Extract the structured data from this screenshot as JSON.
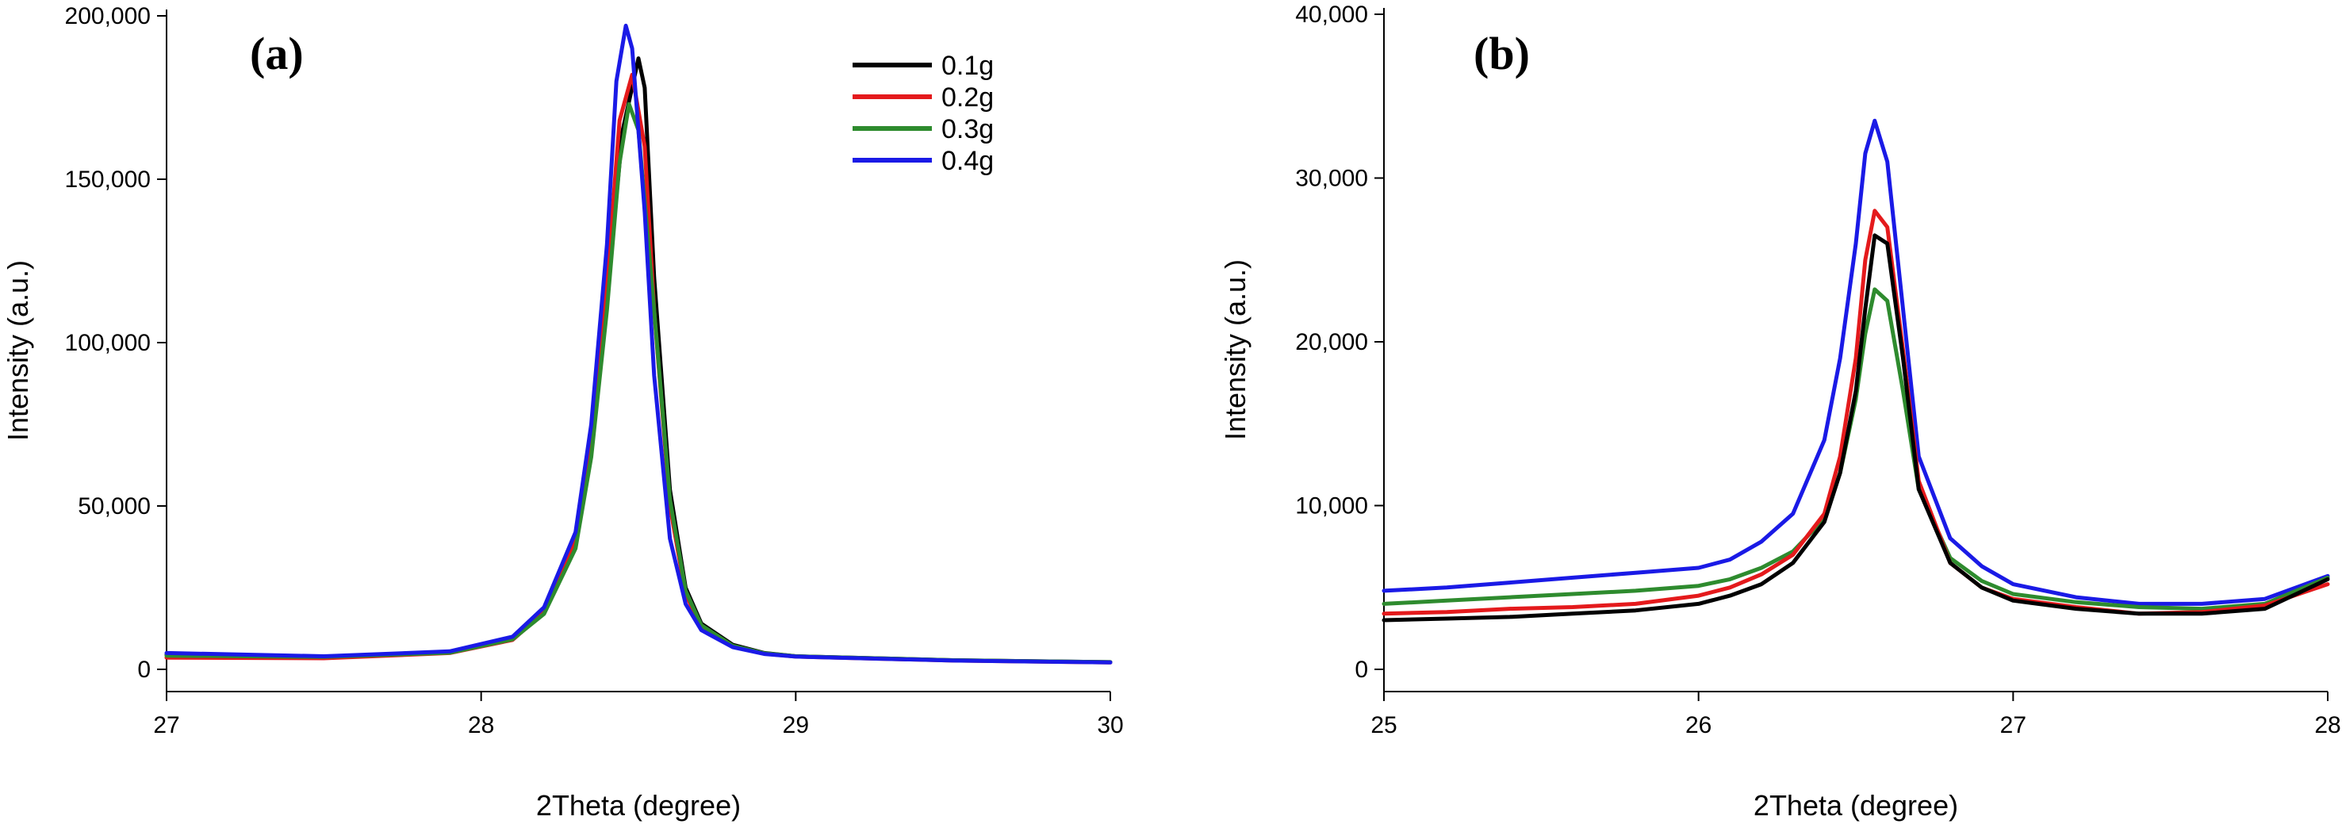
{
  "colors": {
    "0.1g": "#000000",
    "0.2g": "#e41a1c",
    "0.3g": "#2e8b2e",
    "0.4g": "#1a1ae6"
  },
  "chart_data": [
    {
      "type": "line",
      "panel_label": "(a)",
      "xlabel": "2Theta (degree)",
      "ylabel": "Intensity (a.u.)",
      "xlim": [
        27,
        30
      ],
      "ylim": [
        0,
        200000
      ],
      "x_ticks": [
        27,
        28,
        29,
        30
      ],
      "x_tick_labels": [
        "27",
        "28",
        "29",
        "30"
      ],
      "y_ticks": [
        0,
        50000,
        100000,
        150000,
        200000
      ],
      "y_tick_labels": [
        "0",
        "50,000",
        "100,000",
        "150,000",
        "200,000"
      ],
      "legend": {
        "placement": "top-right",
        "entries": [
          "0.1g",
          "0.2g",
          "0.3g",
          "0.4g"
        ]
      },
      "series": [
        {
          "name": "0.1g",
          "x": [
            27.0,
            27.5,
            27.9,
            28.1,
            28.2,
            28.3,
            28.35,
            28.4,
            28.45,
            28.5,
            28.52,
            28.55,
            28.6,
            28.65,
            28.7,
            28.8,
            28.9,
            29.0,
            29.5,
            30.0
          ],
          "y": [
            4500,
            3700,
            5200,
            9500,
            18000,
            40000,
            70000,
            115000,
            165000,
            187000,
            178000,
            120000,
            55000,
            25000,
            14000,
            7500,
            5000,
            4000,
            2800,
            2200
          ]
        },
        {
          "name": "0.2g",
          "x": [
            27.0,
            27.5,
            27.9,
            28.1,
            28.2,
            28.3,
            28.35,
            28.4,
            28.44,
            28.48,
            28.52,
            28.55,
            28.6,
            28.65,
            28.7,
            28.8,
            28.9,
            29.0,
            29.5,
            30.0
          ],
          "y": [
            3600,
            3400,
            5000,
            9000,
            17500,
            39000,
            68000,
            118000,
            168000,
            182000,
            160000,
            110000,
            50000,
            23000,
            13000,
            7000,
            4800,
            3900,
            2700,
            2100
          ]
        },
        {
          "name": "0.3g",
          "x": [
            27.0,
            27.5,
            27.9,
            28.1,
            28.2,
            28.3,
            28.35,
            28.4,
            28.44,
            28.47,
            28.5,
            28.55,
            28.6,
            28.65,
            28.7,
            28.8,
            28.9,
            29.0,
            29.5,
            30.0
          ],
          "y": [
            4200,
            3800,
            5100,
            9200,
            17000,
            37000,
            65000,
            110000,
            155000,
            173000,
            165000,
            110000,
            52000,
            24000,
            13500,
            7200,
            4900,
            4000,
            2800,
            2200
          ]
        },
        {
          "name": "0.4g",
          "x": [
            27.0,
            27.5,
            27.9,
            28.1,
            28.2,
            28.3,
            28.35,
            28.4,
            28.43,
            28.46,
            28.48,
            28.52,
            28.55,
            28.6,
            28.65,
            28.7,
            28.8,
            28.9,
            29.0,
            29.5,
            30.0
          ],
          "y": [
            5000,
            4000,
            5500,
            10000,
            19000,
            42000,
            75000,
            130000,
            180000,
            197000,
            190000,
            140000,
            90000,
            40000,
            20000,
            12000,
            6800,
            4700,
            3900,
            2700,
            2100
          ]
        }
      ]
    },
    {
      "type": "line",
      "panel_label": "(b)",
      "xlabel": "2Theta (degree)",
      "ylabel": "Intensity (a.u.)",
      "xlim": [
        25,
        28
      ],
      "ylim": [
        0,
        40000
      ],
      "x_ticks": [
        25,
        26,
        27,
        28
      ],
      "x_tick_labels": [
        "25",
        "26",
        "27",
        "28"
      ],
      "y_ticks": [
        0,
        10000,
        20000,
        30000,
        40000
      ],
      "y_tick_labels": [
        "0",
        "10,000",
        "20,000",
        "30,000",
        "40,000"
      ],
      "series": [
        {
          "name": "0.1g",
          "x": [
            25.0,
            25.2,
            25.4,
            25.6,
            25.8,
            26.0,
            26.1,
            26.2,
            26.3,
            26.4,
            26.45,
            26.5,
            26.53,
            26.56,
            26.6,
            26.65,
            26.7,
            26.8,
            26.9,
            27.0,
            27.2,
            27.4,
            27.6,
            27.8,
            28.0
          ],
          "y": [
            3000,
            3100,
            3200,
            3400,
            3600,
            4000,
            4500,
            5200,
            6500,
            9000,
            12000,
            17000,
            22000,
            26500,
            26000,
            19000,
            11000,
            6500,
            5000,
            4200,
            3700,
            3400,
            3400,
            3700,
            5500
          ]
        },
        {
          "name": "0.2g",
          "x": [
            25.0,
            25.2,
            25.4,
            25.6,
            25.8,
            26.0,
            26.1,
            26.2,
            26.3,
            26.4,
            26.45,
            26.5,
            26.53,
            26.56,
            26.6,
            26.65,
            26.7,
            26.8,
            26.9,
            27.0,
            27.2,
            27.4,
            27.6,
            27.8,
            28.0
          ],
          "y": [
            3400,
            3500,
            3700,
            3800,
            4000,
            4500,
            5000,
            5800,
            7000,
            9500,
            13000,
            19000,
            25000,
            28000,
            27000,
            19500,
            11500,
            6500,
            5000,
            4300,
            3800,
            3400,
            3500,
            3900,
            5200
          ]
        },
        {
          "name": "0.3g",
          "x": [
            25.0,
            25.2,
            25.4,
            25.6,
            25.8,
            26.0,
            26.1,
            26.2,
            26.3,
            26.4,
            26.45,
            26.5,
            26.53,
            26.56,
            26.6,
            26.65,
            26.7,
            26.8,
            26.9,
            27.0,
            27.2,
            27.4,
            27.6,
            27.8,
            28.0
          ],
          "y": [
            4000,
            4200,
            4400,
            4600,
            4800,
            5100,
            5500,
            6200,
            7200,
            9200,
            12000,
            16500,
            20500,
            23200,
            22500,
            17000,
            11000,
            6800,
            5400,
            4600,
            4100,
            3800,
            3700,
            4000,
            5600
          ]
        },
        {
          "name": "0.4g",
          "x": [
            25.0,
            25.2,
            25.4,
            25.6,
            25.8,
            26.0,
            26.1,
            26.2,
            26.3,
            26.4,
            26.45,
            26.5,
            26.53,
            26.56,
            26.6,
            26.65,
            26.7,
            26.8,
            26.9,
            27.0,
            27.2,
            27.4,
            27.6,
            27.8,
            28.0
          ],
          "y": [
            4800,
            5000,
            5300,
            5600,
            5900,
            6200,
            6700,
            7800,
            9500,
            14000,
            19000,
            26000,
            31500,
            33500,
            31000,
            22000,
            13000,
            8000,
            6300,
            5200,
            4400,
            4000,
            4000,
            4300,
            5700
          ]
        }
      ]
    }
  ]
}
